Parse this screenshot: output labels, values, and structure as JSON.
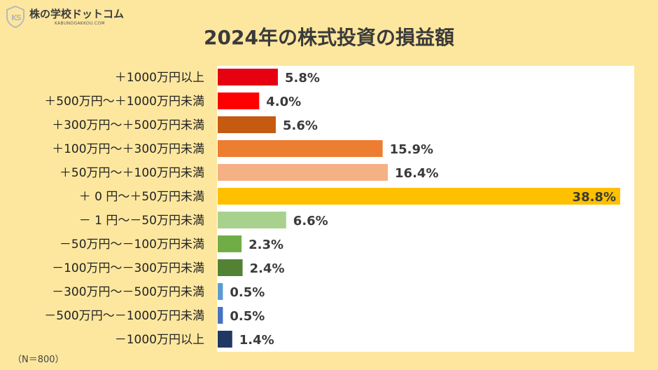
{
  "logo": {
    "brand": "株の学校ドットコム",
    "sub": "KABUNOGAKKOU.COM",
    "icon": "ks-shield-logo"
  },
  "note": "（N＝800）",
  "chart_data": {
    "type": "bar",
    "orientation": "horizontal",
    "title": "2024年の株式投資の損益額",
    "categories": [
      "＋1000万円以上",
      "＋500万円〜＋1000万円未満",
      "＋300万円〜＋500万円未満",
      "＋100万円〜＋300万円未満",
      "＋50万円〜＋100万円未満",
      "＋ 0 円〜＋50万円未満",
      "－ 1 円〜－50万円未満",
      "－50万円〜－100万円未満",
      "－100万円〜－300万円未満",
      "－300万円〜－500万円未満",
      "－500万円〜－1000万円未満",
      "－1000万円以上"
    ],
    "values": [
      5.8,
      4.0,
      5.6,
      15.9,
      16.4,
      38.8,
      6.6,
      2.3,
      2.4,
      0.5,
      0.5,
      1.4
    ],
    "value_labels": [
      "5.8%",
      "4.0%",
      "5.6%",
      "15.9%",
      "16.4%",
      "38.8%",
      "6.6%",
      "2.3%",
      "2.4%",
      "0.5%",
      "0.5%",
      "1.4%"
    ],
    "colors": [
      "#e60012",
      "#ff0000",
      "#c55a11",
      "#ed7d31",
      "#f4b183",
      "#ffc000",
      "#a9d18e",
      "#70ad47",
      "#548235",
      "#5b9bd5",
      "#4472c4",
      "#1f3864"
    ],
    "xlim": [
      0,
      38.8
    ],
    "grid": false,
    "legend": false
  }
}
